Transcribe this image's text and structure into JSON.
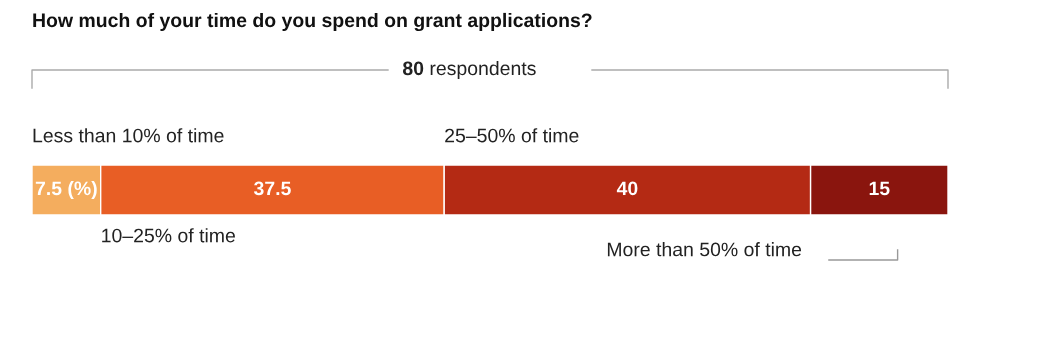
{
  "chart_data": {
    "type": "bar",
    "orientation": "horizontal",
    "stacked": true,
    "title": "How much of your time do you spend on grant applications?",
    "annotations": [
      "80 respondents"
    ],
    "categories": [
      null
    ],
    "xlim": [
      0,
      100
    ],
    "grid": false,
    "series": [
      {
        "name": "Less than 10% of time",
        "color": "#f4ad5e",
        "values": [
          7.5
        ],
        "value_labels": [
          "7.5 (%)"
        ]
      },
      {
        "name": "10–25% of time",
        "color": "#e85e25",
        "values": [
          37.5
        ],
        "value_labels": [
          "37.5"
        ]
      },
      {
        "name": "25–50% of time",
        "color": "#b42a14",
        "values": [
          40
        ],
        "value_labels": [
          "40"
        ]
      },
      {
        "name": "More than 50% of time",
        "color": "#8a150e",
        "values": [
          15
        ],
        "value_labels": [
          "15"
        ]
      }
    ]
  }
}
